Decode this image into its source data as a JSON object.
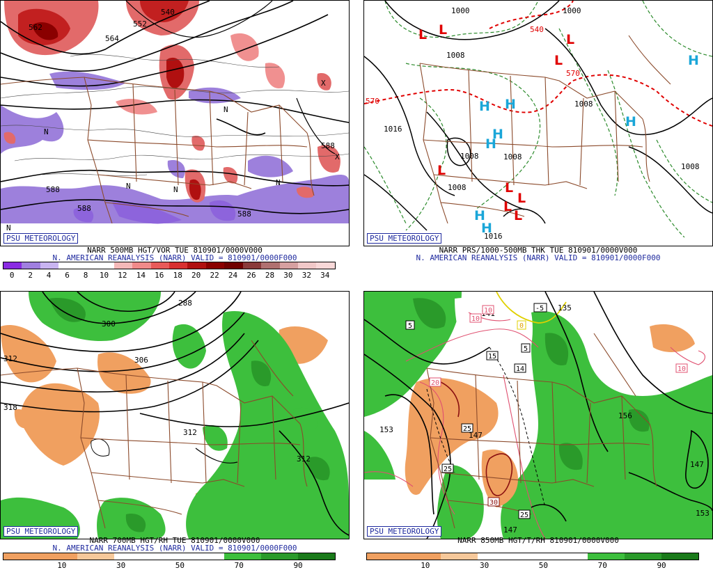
{
  "panels": [
    {
      "id": "tl",
      "line1": "NARR 500MB HGT/VOR TUE 810901/0000V000",
      "line2": "N. AMERICAN REANALYSIS (NARR) VALID = 810901/0000F000",
      "logo": "PSU METEOROLOGY",
      "colorbar": {
        "colors": [
          "#8a2be2",
          "#a07fe0",
          "#c8b4f0",
          "#ffffff",
          "#ffffff",
          "#ffffff",
          "#f4b8b8",
          "#f08a8a",
          "#e85a5a",
          "#d83030",
          "#b01010",
          "#8a0000",
          "#700000",
          "#8a3a3a",
          "#b07070",
          "#d6a0a0",
          "#f0c8c8",
          "#f8d8d8"
        ],
        "ticks": [
          "0",
          "2",
          "4",
          "6",
          "8",
          "10",
          "12",
          "14",
          "16",
          "18",
          "20",
          "22",
          "24",
          "26",
          "28",
          "30",
          "32",
          "34"
        ]
      },
      "labels": [
        "562",
        "564",
        "552",
        "540",
        "588",
        "588",
        "588",
        "588",
        "N",
        "N",
        "N",
        "N",
        "N",
        "N",
        "X",
        "X"
      ]
    },
    {
      "id": "tr",
      "line1": "NARR PRS/1000-500MB THK TUE 810901/0000V000",
      "line2": "N. AMERICAN REANALYSIS (NARR) VALID = 810901/0000F000",
      "logo": "PSU METEOROLOGY",
      "isobars": [
        "1000",
        "1000",
        "1008",
        "1016",
        "1008",
        "1008",
        "1008",
        "1008",
        "1016",
        "1008"
      ],
      "thickness": [
        "570",
        "540",
        "570"
      ],
      "highs": [
        "H",
        "H",
        "H",
        "H",
        "H",
        "H",
        "H",
        "H"
      ],
      "lows": [
        "L",
        "L",
        "L",
        "L",
        "L",
        "L",
        "L",
        "L",
        "L"
      ]
    },
    {
      "id": "bl",
      "line1": "NARR 700MB HGT/RH TUE 810901/0000V000",
      "line2": "N. AMERICAN REANALYSIS (NARR) VALID = 810901/0000F000",
      "logo": "PSU METEOROLOGY",
      "colorbar": {
        "colors": [
          "#f0a060",
          "#f0a060",
          "#f6c89a",
          "#ffffff",
          "#ffffff",
          "#ffffff",
          "#3dbf3d",
          "#2a9a2a",
          "#1a7a1a"
        ],
        "ticks": [
          "10",
          "30",
          "50",
          "70",
          "90"
        ]
      },
      "labels": [
        "312",
        "300",
        "288",
        "306",
        "312",
        "312",
        "318"
      ]
    },
    {
      "id": "br",
      "line1": "NARR 850MB HGT/T/RH 810901/0000V000",
      "logo": "PSU METEOROLOGY",
      "colorbar": {
        "colors": [
          "#f0a060",
          "#f0a060",
          "#f6c89a",
          "#ffffff",
          "#ffffff",
          "#ffffff",
          "#3dbf3d",
          "#2a9a2a",
          "#1a7a1a"
        ],
        "ticks": [
          "10",
          "30",
          "50",
          "70",
          "90"
        ]
      },
      "heights": [
        "153",
        "141",
        "147",
        "156",
        "147",
        "153",
        "147",
        "135"
      ],
      "temps": [
        "5",
        "10",
        "-5",
        "0",
        "5",
        "15",
        "14",
        "20",
        "25",
        "10",
        "25",
        "30",
        "25",
        "10"
      ]
    }
  ]
}
